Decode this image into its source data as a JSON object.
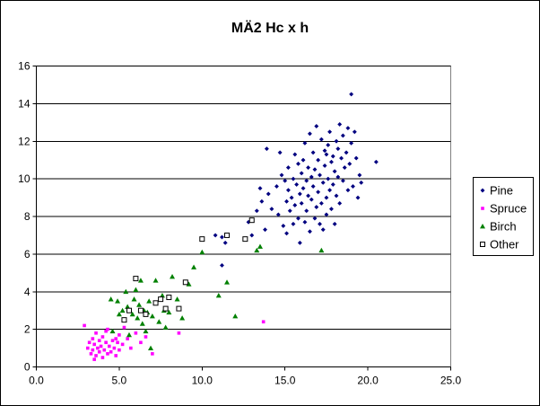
{
  "chart_data": {
    "type": "scatter",
    "title": "MÄ2 Hc x h",
    "xlabel": "",
    "ylabel": "",
    "xlim": [
      0,
      25
    ],
    "ylim": [
      0,
      16
    ],
    "x_ticks": [
      "0.0",
      "5.0",
      "10.0",
      "15.0",
      "20.0",
      "25.0"
    ],
    "y_ticks": [
      "0",
      "2",
      "4",
      "6",
      "8",
      "10",
      "12",
      "14",
      "16"
    ],
    "grid": "horizontal",
    "legend_position": "right",
    "series": [
      {
        "name": "Pine",
        "marker": "diamond",
        "color": "#000080",
        "points": [
          [
            10.8,
            7.0
          ],
          [
            11.2,
            6.9
          ],
          [
            11.4,
            6.6
          ],
          [
            11.2,
            5.4
          ],
          [
            12.8,
            7.7
          ],
          [
            13.0,
            7.0
          ],
          [
            13.3,
            8.3
          ],
          [
            13.5,
            9.5
          ],
          [
            13.6,
            8.8
          ],
          [
            13.8,
            7.3
          ],
          [
            13.9,
            11.6
          ],
          [
            14.0,
            9.2
          ],
          [
            14.2,
            8.4
          ],
          [
            14.5,
            9.6
          ],
          [
            14.6,
            8.1
          ],
          [
            14.7,
            11.4
          ],
          [
            14.8,
            10.2
          ],
          [
            14.9,
            7.5
          ],
          [
            15.0,
            9.9
          ],
          [
            15.1,
            8.8
          ],
          [
            15.1,
            7.1
          ],
          [
            15.2,
            9.4
          ],
          [
            15.2,
            10.6
          ],
          [
            15.3,
            8.3
          ],
          [
            15.4,
            9.0
          ],
          [
            15.5,
            10.0
          ],
          [
            15.5,
            7.6
          ],
          [
            15.6,
            11.3
          ],
          [
            15.6,
            8.6
          ],
          [
            15.7,
            9.7
          ],
          [
            15.8,
            10.8
          ],
          [
            15.8,
            7.9
          ],
          [
            15.9,
            9.2
          ],
          [
            15.9,
            6.6
          ],
          [
            16.0,
            10.3
          ],
          [
            16.0,
            8.7
          ],
          [
            16.1,
            11.0
          ],
          [
            16.1,
            9.5
          ],
          [
            16.2,
            7.7
          ],
          [
            16.2,
            11.9
          ],
          [
            16.3,
            9.9
          ],
          [
            16.3,
            8.3
          ],
          [
            16.4,
            10.6
          ],
          [
            16.4,
            9.1
          ],
          [
            16.5,
            7.2
          ],
          [
            16.5,
            12.4
          ],
          [
            16.6,
            10.1
          ],
          [
            16.6,
            8.9
          ],
          [
            16.7,
            11.4
          ],
          [
            16.7,
            9.6
          ],
          [
            16.8,
            7.9
          ],
          [
            16.8,
            10.5
          ],
          [
            16.9,
            8.5
          ],
          [
            16.9,
            12.8
          ],
          [
            17.0,
            9.3
          ],
          [
            17.0,
            11.0
          ],
          [
            17.1,
            7.6
          ],
          [
            17.1,
            10.2
          ],
          [
            17.2,
            8.7
          ],
          [
            17.2,
            12.1
          ],
          [
            17.3,
            9.8
          ],
          [
            17.3,
            7.3
          ],
          [
            17.4,
            11.5
          ],
          [
            17.4,
            10.7
          ],
          [
            17.5,
            9.0
          ],
          [
            17.5,
            8.1
          ],
          [
            17.6,
            11.8
          ],
          [
            17.6,
            10.0
          ],
          [
            17.7,
            9.4
          ],
          [
            17.7,
            12.5
          ],
          [
            17.8,
            10.9
          ],
          [
            17.8,
            8.4
          ],
          [
            17.9,
            11.2
          ],
          [
            17.9,
            9.7
          ],
          [
            18.0,
            7.6
          ],
          [
            18.0,
            10.4
          ],
          [
            18.1,
            12.0
          ],
          [
            18.1,
            9.1
          ],
          [
            18.2,
            11.6
          ],
          [
            18.2,
            10.1
          ],
          [
            18.3,
            12.9
          ],
          [
            18.3,
            8.7
          ],
          [
            18.4,
            11.1
          ],
          [
            18.5,
            9.9
          ],
          [
            18.5,
            12.3
          ],
          [
            18.6,
            10.6
          ],
          [
            18.7,
            11.4
          ],
          [
            18.8,
            9.4
          ],
          [
            18.8,
            12.7
          ],
          [
            18.9,
            10.8
          ],
          [
            19.0,
            11.9
          ],
          [
            19.0,
            14.5
          ],
          [
            19.1,
            9.6
          ],
          [
            19.2,
            12.5
          ],
          [
            19.3,
            11.1
          ],
          [
            19.4,
            9.0
          ],
          [
            19.5,
            10.2
          ],
          [
            19.6,
            9.8
          ],
          [
            20.5,
            10.9
          ],
          [
            17.5,
            11.3
          ]
        ]
      },
      {
        "name": "Spruce",
        "marker": "square",
        "color": "#FF00FF",
        "points": [
          [
            2.9,
            2.2
          ],
          [
            3.1,
            1.0
          ],
          [
            3.2,
            1.3
          ],
          [
            3.3,
            0.7
          ],
          [
            3.4,
            1.5
          ],
          [
            3.4,
            0.9
          ],
          [
            3.5,
            1.2
          ],
          [
            3.6,
            0.6
          ],
          [
            3.6,
            1.8
          ],
          [
            3.7,
            1.0
          ],
          [
            3.8,
            1.4
          ],
          [
            3.8,
            0.8
          ],
          [
            3.9,
            1.1
          ],
          [
            4.0,
            0.5
          ],
          [
            4.0,
            1.6
          ],
          [
            4.1,
            0.9
          ],
          [
            4.2,
            1.3
          ],
          [
            4.3,
            0.7
          ],
          [
            4.3,
            2.0
          ],
          [
            4.4,
            1.1
          ],
          [
            4.5,
            0.8
          ],
          [
            4.6,
            1.4
          ],
          [
            4.7,
            1.0
          ],
          [
            4.8,
            0.6
          ],
          [
            4.9,
            1.3
          ],
          [
            5.0,
            1.7
          ],
          [
            5.0,
            0.9
          ],
          [
            5.2,
            1.2
          ],
          [
            5.3,
            2.1
          ],
          [
            5.5,
            1.5
          ],
          [
            5.7,
            1.0
          ],
          [
            6.0,
            1.8
          ],
          [
            6.3,
            1.3
          ],
          [
            6.6,
            1.6
          ],
          [
            7.0,
            0.7
          ],
          [
            8.6,
            1.8
          ],
          [
            13.7,
            2.4
          ],
          [
            4.2,
            1.9
          ],
          [
            3.5,
            0.4
          ],
          [
            4.8,
            1.5
          ]
        ]
      },
      {
        "name": "Birch",
        "marker": "triangle",
        "color": "#008000",
        "points": [
          [
            4.5,
            3.6
          ],
          [
            4.9,
            3.5
          ],
          [
            5.0,
            2.8
          ],
          [
            5.2,
            3.0
          ],
          [
            5.3,
            2.5
          ],
          [
            5.5,
            3.2
          ],
          [
            5.6,
            1.7
          ],
          [
            5.8,
            2.8
          ],
          [
            5.9,
            3.6
          ],
          [
            6.0,
            4.1
          ],
          [
            6.1,
            2.6
          ],
          [
            6.2,
            3.3
          ],
          [
            6.3,
            4.6
          ],
          [
            6.4,
            2.3
          ],
          [
            6.5,
            3.0
          ],
          [
            6.6,
            1.9
          ],
          [
            6.7,
            2.9
          ],
          [
            6.8,
            3.5
          ],
          [
            6.9,
            1.0
          ],
          [
            7.0,
            2.7
          ],
          [
            7.2,
            4.6
          ],
          [
            7.4,
            2.4
          ],
          [
            7.6,
            3.8
          ],
          [
            7.8,
            2.1
          ],
          [
            8.0,
            2.9
          ],
          [
            8.2,
            4.8
          ],
          [
            8.5,
            3.6
          ],
          [
            8.8,
            2.6
          ],
          [
            9.2,
            4.4
          ],
          [
            9.5,
            5.3
          ],
          [
            10.0,
            6.1
          ],
          [
            11.0,
            3.8
          ],
          [
            11.5,
            4.5
          ],
          [
            12.0,
            2.7
          ],
          [
            13.3,
            6.2
          ],
          [
            13.5,
            6.4
          ],
          [
            17.2,
            6.2
          ],
          [
            4.6,
            1.9
          ],
          [
            5.4,
            4.0
          ],
          [
            7.7,
            3.0
          ]
        ]
      },
      {
        "name": "Other",
        "marker": "hollow-square",
        "color": "#000000",
        "points": [
          [
            5.3,
            2.5
          ],
          [
            5.6,
            3.0
          ],
          [
            6.0,
            4.7
          ],
          [
            6.3,
            3.0
          ],
          [
            6.6,
            2.8
          ],
          [
            7.2,
            3.4
          ],
          [
            7.5,
            3.6
          ],
          [
            7.8,
            3.1
          ],
          [
            8.0,
            3.7
          ],
          [
            8.6,
            3.1
          ],
          [
            9.0,
            4.5
          ],
          [
            10.0,
            6.8
          ],
          [
            11.5,
            7.0
          ],
          [
            12.6,
            6.8
          ],
          [
            13.0,
            7.8
          ]
        ]
      }
    ]
  }
}
